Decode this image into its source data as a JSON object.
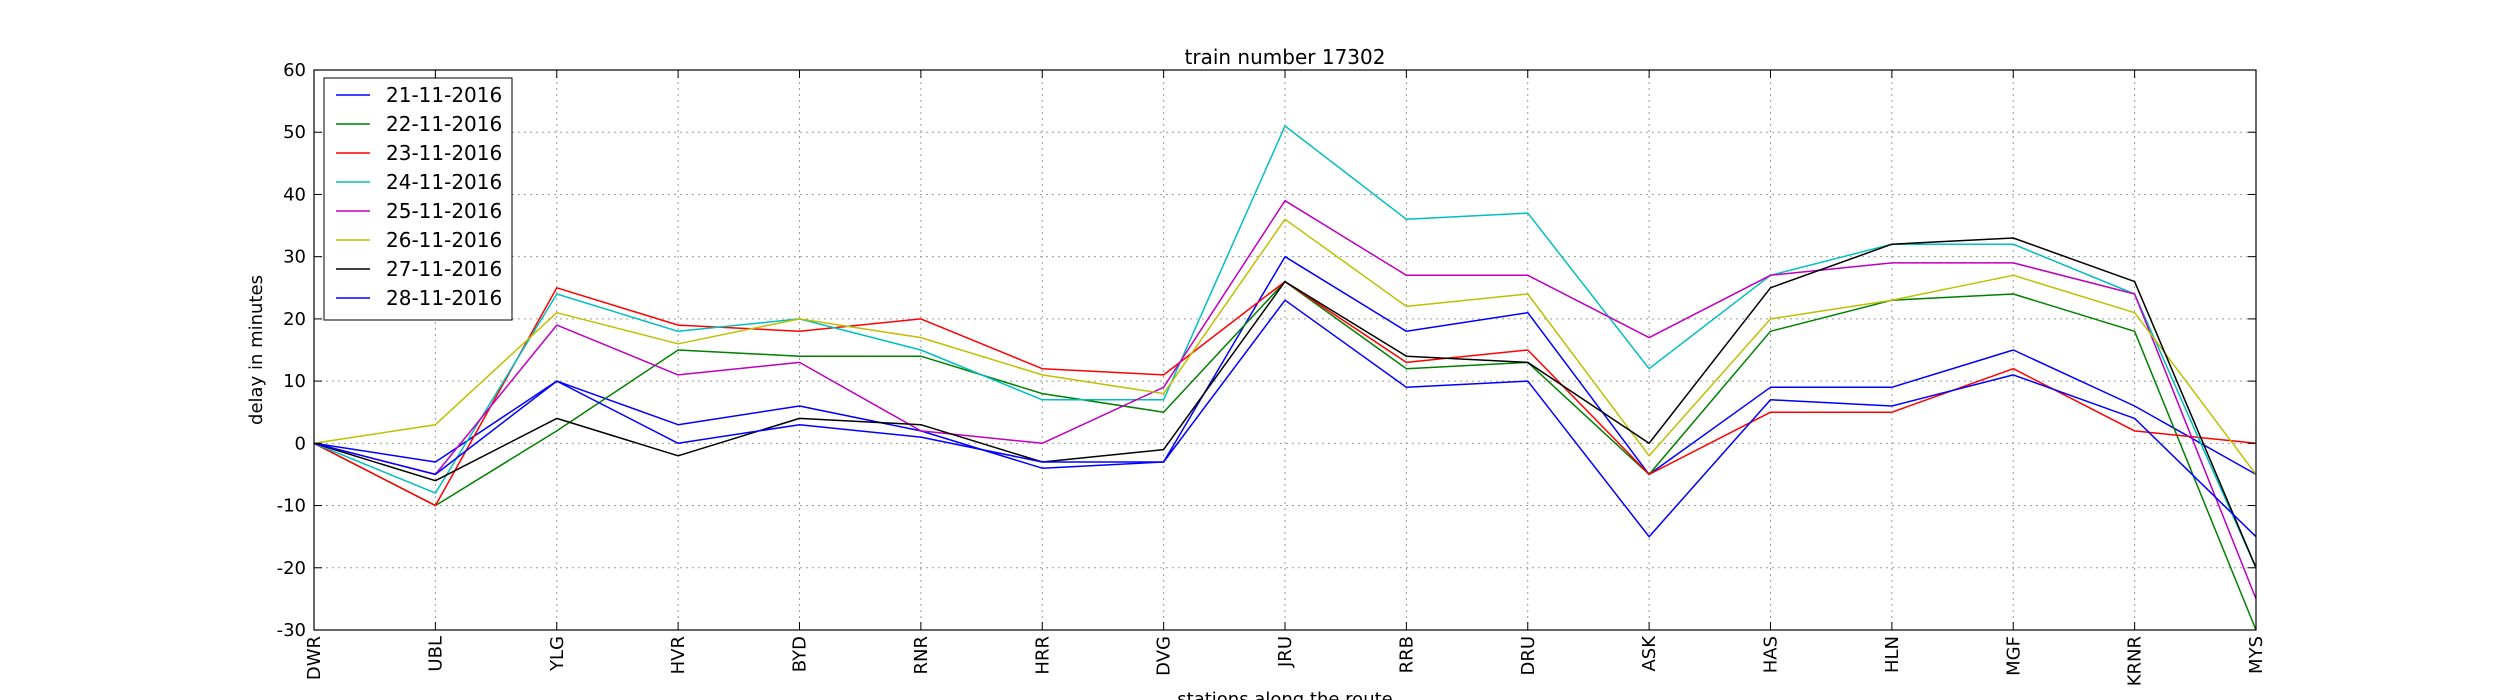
{
  "chart_data": {
    "type": "line",
    "title": "train number 17302",
    "xlabel": "stations along the route",
    "ylabel": "delay in minutes",
    "categories": [
      "DWR",
      "UBL",
      "YLG",
      "HVR",
      "BYD",
      "RNR",
      "HRR",
      "DVG",
      "JRU",
      "RRB",
      "DRU",
      "ASK",
      "HAS",
      "HLN",
      "MGF",
      "KRNR",
      "MYS"
    ],
    "ylim": [
      -30,
      60
    ],
    "yticks": [
      -30,
      -20,
      -10,
      0,
      10,
      20,
      30,
      40,
      50,
      60
    ],
    "grid": true,
    "legend_position": "top-left",
    "series": [
      {
        "name": "21-11-2016",
        "color": "#0000ff",
        "values": [
          0,
          -3,
          10,
          3,
          6,
          2,
          -4,
          -3,
          30,
          18,
          21,
          -5,
          9,
          9,
          15,
          6,
          -5
        ]
      },
      {
        "name": "22-11-2016",
        "color": "#008000",
        "values": [
          0,
          -10,
          2,
          15,
          14,
          14,
          8,
          5,
          26,
          12,
          13,
          -5,
          18,
          23,
          24,
          18,
          -30
        ]
      },
      {
        "name": "23-11-2016",
        "color": "#ff0000",
        "values": [
          0,
          -10,
          25,
          19,
          18,
          20,
          12,
          11,
          26,
          13,
          15,
          -5,
          5,
          5,
          12,
          2,
          0
        ]
      },
      {
        "name": "24-11-2016",
        "color": "#00bfbf",
        "values": [
          0,
          -8,
          24,
          18,
          20,
          15,
          7,
          7,
          51,
          36,
          37,
          12,
          27,
          32,
          32,
          24,
          -20
        ]
      },
      {
        "name": "25-11-2016",
        "color": "#bf00bf",
        "values": [
          0,
          -5,
          19,
          11,
          13,
          2,
          0,
          9,
          39,
          27,
          27,
          17,
          27,
          29,
          29,
          24,
          -25
        ]
      },
      {
        "name": "26-11-2016",
        "color": "#bfbf00",
        "values": [
          0,
          3,
          21,
          16,
          20,
          17,
          11,
          8,
          36,
          22,
          24,
          -2,
          20,
          23,
          27,
          21,
          -5
        ]
      },
      {
        "name": "27-11-2016",
        "color": "#000000",
        "values": [
          0,
          -6,
          4,
          -2,
          4,
          3,
          -3,
          -1,
          26,
          14,
          13,
          0,
          25,
          32,
          33,
          26,
          -20
        ]
      },
      {
        "name": "28-11-2016",
        "color": "#0000ff",
        "values": [
          0,
          -5,
          10,
          0,
          3,
          1,
          -3,
          -3,
          23,
          9,
          10,
          -15,
          7,
          6,
          11,
          4,
          -15
        ]
      }
    ]
  }
}
